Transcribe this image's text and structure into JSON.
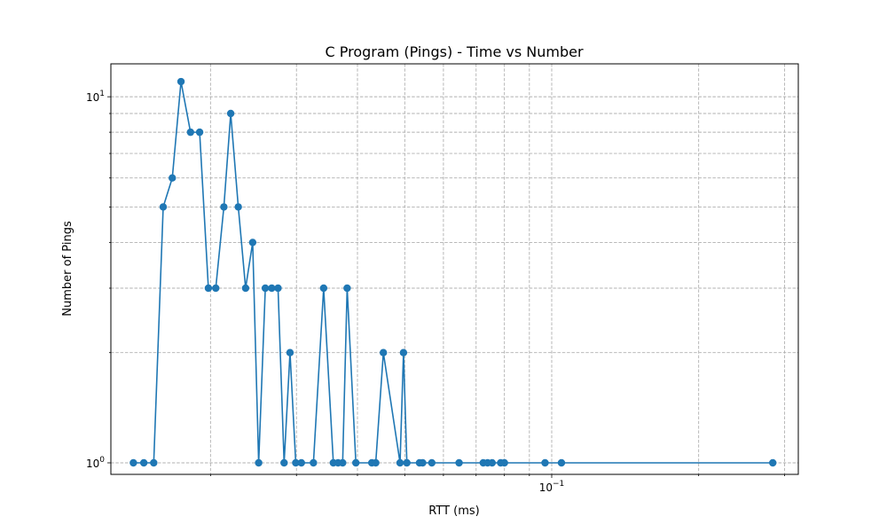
{
  "chart_data": {
    "type": "line",
    "title": "C Program (Pings) - Time vs Number",
    "xlabel": "RTT (ms)",
    "ylabel": "Number of Pings",
    "xscale": "log",
    "yscale": "log",
    "xlim": [
      0.0125,
      0.32
    ],
    "ylim": [
      0.93,
      12.3
    ],
    "grid": true,
    "x_tick_labels": [
      {
        "value": 0.1,
        "base": "10",
        "exp": "−1"
      }
    ],
    "y_tick_labels": [
      {
        "value": 1,
        "base": "10",
        "exp": "0"
      },
      {
        "value": 10,
        "base": "10",
        "exp": "1"
      }
    ],
    "series": [
      {
        "color": "#1f77b4",
        "marker": "circle",
        "points": [
          [
            0.0139,
            1
          ],
          [
            0.0146,
            1
          ],
          [
            0.0153,
            1
          ],
          [
            0.016,
            5
          ],
          [
            0.0167,
            6
          ],
          [
            0.0174,
            11
          ],
          [
            0.0182,
            8
          ],
          [
            0.019,
            8
          ],
          [
            0.0198,
            3
          ],
          [
            0.0205,
            3
          ],
          [
            0.0213,
            5
          ],
          [
            0.022,
            9
          ],
          [
            0.0228,
            5
          ],
          [
            0.0236,
            3
          ],
          [
            0.0244,
            4
          ],
          [
            0.0251,
            1
          ],
          [
            0.0259,
            3
          ],
          [
            0.0267,
            3
          ],
          [
            0.0275,
            3
          ],
          [
            0.0283,
            1
          ],
          [
            0.0291,
            2
          ],
          [
            0.0299,
            1
          ],
          [
            0.0307,
            1
          ],
          [
            0.0325,
            1
          ],
          [
            0.0341,
            3
          ],
          [
            0.0357,
            1
          ],
          [
            0.0365,
            1
          ],
          [
            0.0373,
            1
          ],
          [
            0.0381,
            3
          ],
          [
            0.0397,
            1
          ],
          [
            0.0428,
            1
          ],
          [
            0.0436,
            1
          ],
          [
            0.0452,
            2
          ],
          [
            0.0489,
            1
          ],
          [
            0.0497,
            2
          ],
          [
            0.0505,
            1
          ],
          [
            0.0536,
            1
          ],
          [
            0.0544,
            1
          ],
          [
            0.0568,
            1
          ],
          [
            0.0646,
            1
          ],
          [
            0.0724,
            1
          ],
          [
            0.0739,
            1
          ],
          [
            0.0755,
            1
          ],
          [
            0.0786,
            1
          ],
          [
            0.08,
            1
          ],
          [
            0.0969,
            1
          ],
          [
            0.1047,
            1
          ],
          [
            0.2837,
            1
          ]
        ]
      }
    ]
  }
}
